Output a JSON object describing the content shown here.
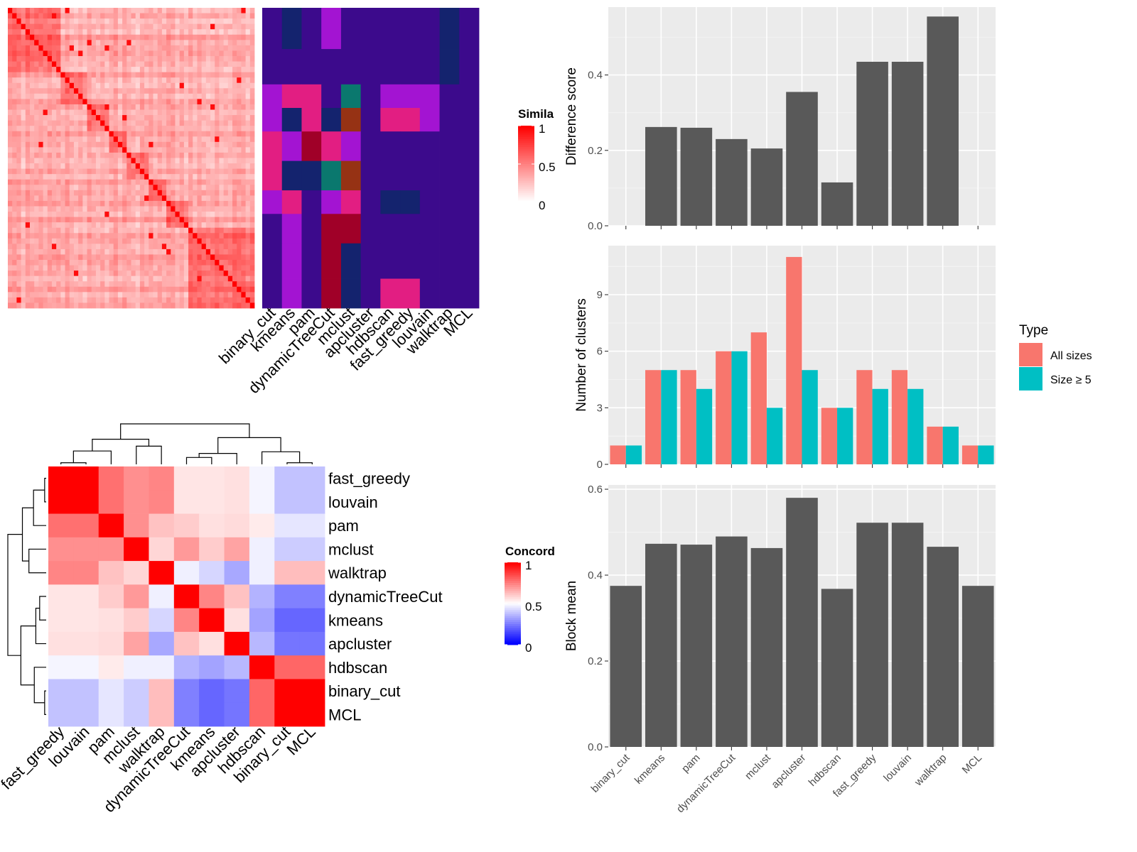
{
  "legends": {
    "similarity_title": "Simila",
    "similarity_ticks": [
      "1",
      "0.5",
      "0"
    ],
    "concordance_title": "Concord",
    "concordance_ticks": [
      "1",
      "0.5",
      "0"
    ],
    "type_title": "Type",
    "type_items": [
      {
        "label": "All sizes",
        "color": "#F8766D"
      },
      {
        "label": "Size ≥ 5",
        "color": "#00BFC4"
      }
    ]
  },
  "colors": {
    "heat_high": "#ff0000",
    "heat_mid": "#ffffff",
    "heat_low": "#0000ff",
    "bar_dark": "#595959",
    "panel_bg": "#ebebeb",
    "cluster_palette": [
      "#3c0a8c",
      "#14236e",
      "#a314d2",
      "#e21e82",
      "#a00028",
      "#0a786e",
      "#963214",
      "#641e96"
    ]
  },
  "chart_data": [
    {
      "type": "heatmap",
      "name_hint": "cell similarity",
      "n_cells": 56,
      "note": "cell-by-cell similarity matrix, block-diagonal, values 0 to 1",
      "blocks": [
        {
          "start": 0,
          "size": 12
        },
        {
          "start": 12,
          "size": 6
        },
        {
          "start": 18,
          "size": 5
        },
        {
          "start": 23,
          "size": 4
        },
        {
          "start": 27,
          "size": 5
        },
        {
          "start": 32,
          "size": 4
        },
        {
          "start": 36,
          "size": 5
        },
        {
          "start": 41,
          "size": 15
        }
      ]
    },
    {
      "type": "heatmap",
      "name_hint": "cluster assignments",
      "columns": [
        "binary_cut",
        "kmeans",
        "pam",
        "dynamicTreeCut",
        "mclust",
        "apcluster",
        "hdbscan",
        "fast_greedy",
        "louvain",
        "walktrap",
        "MCL"
      ],
      "row_groups": [
        {
          "rows": 7,
          "clusters": [
            0,
            1,
            0,
            2,
            0,
            0,
            0,
            0,
            0,
            1,
            0
          ]
        },
        {
          "rows": 6,
          "clusters": [
            0,
            0,
            0,
            0,
            0,
            0,
            0,
            0,
            0,
            1,
            0
          ]
        },
        {
          "rows": 4,
          "clusters": [
            2,
            3,
            3,
            0,
            5,
            0,
            2,
            2,
            2,
            0,
            0
          ]
        },
        {
          "rows": 4,
          "clusters": [
            2,
            1,
            3,
            1,
            6,
            0,
            3,
            3,
            2,
            0,
            0
          ]
        },
        {
          "rows": 5,
          "clusters": [
            3,
            2,
            4,
            3,
            2,
            0,
            0,
            0,
            0,
            0,
            0
          ]
        },
        {
          "rows": 5,
          "clusters": [
            3,
            1,
            1,
            5,
            6,
            0,
            0,
            0,
            0,
            0,
            0
          ]
        },
        {
          "rows": 4,
          "clusters": [
            2,
            3,
            0,
            2,
            3,
            0,
            1,
            1,
            0,
            0,
            0
          ]
        },
        {
          "rows": 5,
          "clusters": [
            0,
            2,
            0,
            4,
            4,
            0,
            0,
            0,
            0,
            0,
            0
          ]
        },
        {
          "rows": 6,
          "clusters": [
            0,
            2,
            0,
            4,
            1,
            0,
            0,
            0,
            0,
            0,
            0
          ]
        },
        {
          "rows": 5,
          "clusters": [
            0,
            2,
            0,
            4,
            1,
            0,
            3,
            3,
            0,
            0,
            0
          ]
        }
      ]
    },
    {
      "type": "heatmap",
      "name_hint": "method concordance",
      "row_labels": [
        "fast_greedy",
        "louvain",
        "pam",
        "mclust",
        "walktrap",
        "dynamicTreeCut",
        "kmeans",
        "apcluster",
        "hdbscan",
        "binary_cut",
        "MCL"
      ],
      "col_labels": [
        "fast_greedy",
        "louvain",
        "pam",
        "mclust",
        "walktrap",
        "dynamicTreeCut",
        "kmeans",
        "apcluster",
        "hdbscan",
        "binary_cut",
        "MCL"
      ],
      "values": [
        [
          1.0,
          1.0,
          0.78,
          0.72,
          0.74,
          0.55,
          0.55,
          0.56,
          0.48,
          0.38,
          0.38
        ],
        [
          1.0,
          1.0,
          0.78,
          0.72,
          0.74,
          0.55,
          0.55,
          0.56,
          0.48,
          0.38,
          0.38
        ],
        [
          0.78,
          0.78,
          1.0,
          0.72,
          0.62,
          0.6,
          0.56,
          0.57,
          0.54,
          0.45,
          0.45
        ],
        [
          0.72,
          0.72,
          0.72,
          1.0,
          0.58,
          0.7,
          0.6,
          0.68,
          0.47,
          0.4,
          0.4
        ],
        [
          0.74,
          0.74,
          0.62,
          0.58,
          1.0,
          0.47,
          0.42,
          0.33,
          0.47,
          0.63,
          0.63
        ],
        [
          0.55,
          0.55,
          0.6,
          0.7,
          0.47,
          1.0,
          0.74,
          0.62,
          0.35,
          0.25,
          0.25
        ],
        [
          0.55,
          0.55,
          0.56,
          0.6,
          0.42,
          0.74,
          1.0,
          0.56,
          0.32,
          0.2,
          0.2
        ],
        [
          0.56,
          0.56,
          0.57,
          0.68,
          0.33,
          0.62,
          0.56,
          1.0,
          0.36,
          0.23,
          0.23
        ],
        [
          0.48,
          0.48,
          0.54,
          0.47,
          0.47,
          0.35,
          0.32,
          0.36,
          1.0,
          0.8,
          0.8
        ],
        [
          0.38,
          0.38,
          0.45,
          0.4,
          0.63,
          0.25,
          0.2,
          0.23,
          0.8,
          1.0,
          1.0
        ],
        [
          0.38,
          0.38,
          0.45,
          0.4,
          0.63,
          0.25,
          0.2,
          0.23,
          0.8,
          1.0,
          1.0
        ]
      ],
      "dendrogram": "hierarchical clustering on both rows and columns"
    },
    {
      "type": "bar",
      "categories": [
        "binary_cut",
        "kmeans",
        "pam",
        "dynamicTreeCut",
        "mclust",
        "apcluster",
        "hdbscan",
        "fast_greedy",
        "louvain",
        "walktrap",
        "MCL"
      ],
      "values": [
        0.0,
        0.262,
        0.26,
        0.23,
        0.205,
        0.355,
        0.115,
        0.435,
        0.435,
        0.555,
        0.0
      ],
      "ylabel": "Difference score",
      "ylim": [
        0,
        0.58
      ],
      "yticks": [
        0.0,
        0.2,
        0.4
      ],
      "grid": true
    },
    {
      "type": "bar",
      "categories": [
        "binary_cut",
        "kmeans",
        "pam",
        "dynamicTreeCut",
        "mclust",
        "apcluster",
        "hdbscan",
        "fast_greedy",
        "louvain",
        "walktrap",
        "MCL"
      ],
      "series": [
        {
          "name": "All sizes",
          "values": [
            1,
            5,
            5,
            6,
            7,
            11,
            3,
            5,
            5,
            2,
            1
          ]
        },
        {
          "name": "Size ≥ 5",
          "values": [
            1,
            5,
            4,
            6,
            3,
            5,
            3,
            4,
            4,
            2,
            1
          ]
        }
      ],
      "ylabel": "Number of clusters",
      "ylim": [
        0,
        11.6
      ],
      "yticks": [
        0,
        3,
        6,
        9
      ],
      "grid": true,
      "legend": "right"
    },
    {
      "type": "bar",
      "categories": [
        "binary_cut",
        "kmeans",
        "pam",
        "dynamicTreeCut",
        "mclust",
        "apcluster",
        "hdbscan",
        "fast_greedy",
        "louvain",
        "walktrap",
        "MCL"
      ],
      "values": [
        0.375,
        0.473,
        0.471,
        0.49,
        0.463,
        0.58,
        0.368,
        0.522,
        0.522,
        0.466,
        0.375
      ],
      "ylabel": "Block mean",
      "ylim": [
        0,
        0.61
      ],
      "yticks": [
        0.0,
        0.2,
        0.4,
        0.6
      ],
      "grid": true
    }
  ]
}
